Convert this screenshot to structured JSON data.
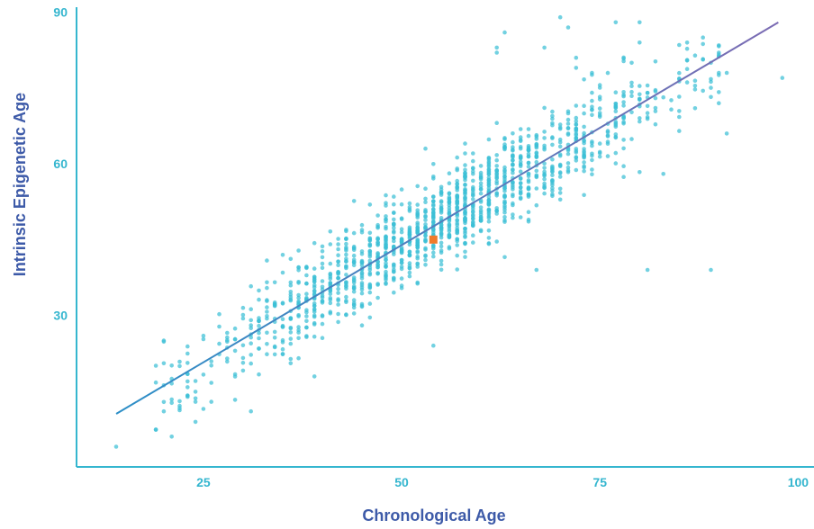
{
  "chart_data": {
    "type": "scatter",
    "title": "",
    "xlabel": "Chronological Age",
    "ylabel": "Intrinsic Epigenetic Age",
    "xlim": [
      9,
      102
    ],
    "ylim": [
      0,
      91
    ],
    "xticks": [
      25,
      50,
      75,
      100
    ],
    "yticks": [
      30,
      60,
      90
    ],
    "grid": false,
    "colors": {
      "points": "#3bbfd6",
      "highlight": "#f07a2b",
      "axis": "#35b6cf",
      "tick_label": "#35b6cf",
      "axis_title": "#3d5aa8",
      "trend_start": "#2d8fc7",
      "trend_end": "#7b6bb3"
    },
    "trend_line": {
      "x": [
        14,
        97.5
      ],
      "y": [
        10.5,
        88
      ]
    },
    "highlight_point": {
      "x": 54,
      "y": 45
    },
    "points_model": {
      "count": 1400,
      "x_center": 55,
      "x_spread": 14.5,
      "x_min": 19,
      "x_max": 90,
      "residual_sd": 4.6,
      "slope": 0.928,
      "intercept": -2.5
    },
    "outlier_points": [
      {
        "x": 14,
        "y": 4
      },
      {
        "x": 21,
        "y": 6
      },
      {
        "x": 20,
        "y": 11
      },
      {
        "x": 31,
        "y": 11
      },
      {
        "x": 20,
        "y": 25
      },
      {
        "x": 54,
        "y": 24
      },
      {
        "x": 58,
        "y": 64
      },
      {
        "x": 53,
        "y": 63
      },
      {
        "x": 63,
        "y": 86
      },
      {
        "x": 62,
        "y": 82
      },
      {
        "x": 62,
        "y": 83
      },
      {
        "x": 70,
        "y": 89
      },
      {
        "x": 71,
        "y": 87
      },
      {
        "x": 68,
        "y": 83
      },
      {
        "x": 72,
        "y": 81
      },
      {
        "x": 72,
        "y": 79
      },
      {
        "x": 74,
        "y": 78
      },
      {
        "x": 77,
        "y": 88
      },
      {
        "x": 80,
        "y": 88
      },
      {
        "x": 80,
        "y": 84
      },
      {
        "x": 79,
        "y": 80
      },
      {
        "x": 86,
        "y": 84
      },
      {
        "x": 88,
        "y": 85
      },
      {
        "x": 89,
        "y": 80
      },
      {
        "x": 90,
        "y": 78
      },
      {
        "x": 91,
        "y": 78
      },
      {
        "x": 98,
        "y": 77
      },
      {
        "x": 91,
        "y": 66
      },
      {
        "x": 83,
        "y": 58
      },
      {
        "x": 81,
        "y": 39
      },
      {
        "x": 89,
        "y": 39
      },
      {
        "x": 67,
        "y": 39
      },
      {
        "x": 90,
        "y": 72
      },
      {
        "x": 87,
        "y": 71
      }
    ]
  }
}
